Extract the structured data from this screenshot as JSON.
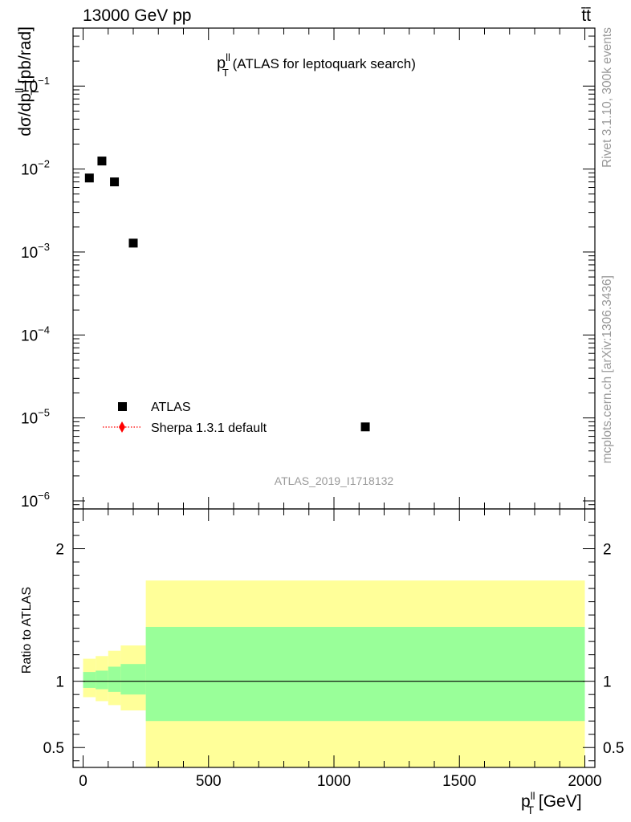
{
  "header": {
    "left": "13000 GeV pp",
    "right": "t̄t̄"
  },
  "side_labels": {
    "rivet": "Rivet 3.1.10,  300k events",
    "mcplots": "mcplots.cern.ch [arXiv:1306.3436]"
  },
  "watermark": "ATLAS_2019_I1718132",
  "chart_data": [
    {
      "type": "scatter",
      "title": {
        "main": "p",
        "sup": "ll",
        "sub": "T",
        "rest": " (ATLAS for leptoquark search)"
      },
      "ylabel": {
        "main": "dσ/dp",
        "sup": "ll",
        "sub": "T",
        "rest": " [pb/rad]"
      },
      "yscale": "log",
      "xlim": [
        -40,
        2040
      ],
      "ylim": [
        8e-07,
        0.5
      ],
      "yticks": [
        {
          "value": 1e-06,
          "base": "10",
          "exp": "−6"
        },
        {
          "value": 1e-05,
          "base": "10",
          "exp": "−5"
        },
        {
          "value": 0.0001,
          "base": "10",
          "exp": "−4"
        },
        {
          "value": 0.001,
          "base": "10",
          "exp": "−3"
        },
        {
          "value": 0.01,
          "base": "10",
          "exp": "−2"
        },
        {
          "value": 0.1,
          "base": "10",
          "exp": "−1"
        }
      ],
      "legend": {
        "placement": "bottom-left",
        "entries": [
          {
            "label": "ATLAS",
            "marker": "square",
            "color": "#000000"
          },
          {
            "label": "Sherpa 1.3.1 default",
            "marker": "diamond-dotted",
            "color": "#ff0000"
          }
        ]
      },
      "series": [
        {
          "name": "ATLAS",
          "x": [
            25,
            75,
            125,
            200,
            1125
          ],
          "y": [
            0.0078,
            0.0125,
            0.007,
            0.00128,
            7.8e-06
          ]
        }
      ]
    },
    {
      "type": "area",
      "ylabel": "Ratio to ATLAS",
      "xlabel": {
        "main": "p",
        "sup": "ll",
        "sub": "T",
        "rest": " [GeV]"
      },
      "xlim": [
        -40,
        2040
      ],
      "ylim": [
        0.35,
        2.3
      ],
      "xticks": [
        0,
        500,
        1000,
        1500,
        2000
      ],
      "yticks": [
        0.5,
        1,
        2
      ],
      "reference_line": 1,
      "colors": {
        "outer_band": "#ffff99",
        "inner_band": "#99ff99"
      },
      "bins": [
        {
          "lo": 0,
          "hi": 50,
          "outer": [
            0.88,
            1.17
          ],
          "inner": [
            0.95,
            1.07
          ]
        },
        {
          "lo": 50,
          "hi": 100,
          "outer": [
            0.85,
            1.19
          ],
          "inner": [
            0.94,
            1.08
          ]
        },
        {
          "lo": 100,
          "hi": 150,
          "outer": [
            0.82,
            1.23
          ],
          "inner": [
            0.92,
            1.11
          ]
        },
        {
          "lo": 150,
          "hi": 250,
          "outer": [
            0.78,
            1.27
          ],
          "inner": [
            0.9,
            1.13
          ]
        },
        {
          "lo": 250,
          "hi": 2000,
          "outer": [
            0.35,
            1.76
          ],
          "inner": [
            0.7,
            1.41
          ]
        }
      ]
    }
  ]
}
